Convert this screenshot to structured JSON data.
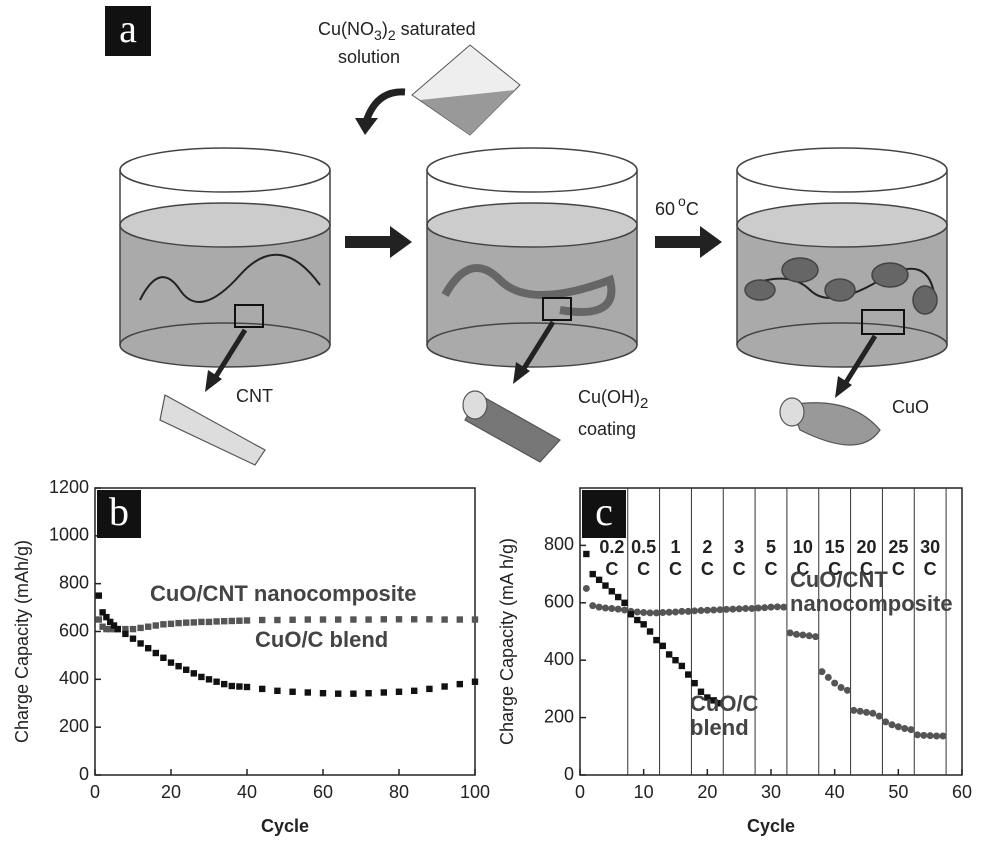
{
  "diagram": {
    "panel": "a",
    "reagent": {
      "formula": [
        "Cu(NO",
        "3",
        ")",
        "2"
      ],
      "line1": "saturated",
      "line2": "solution"
    },
    "temperature": {
      "value": "60",
      "degree": "o",
      "unit": "C"
    },
    "steps": [
      {
        "label": "CNT"
      },
      {
        "label": [
          "Cu(OH)",
          "2"
        ],
        "label2": "coating"
      },
      {
        "label": "CuO"
      }
    ]
  },
  "chart_data": [
    {
      "type": "scatter",
      "panel": "b",
      "xlabel": "Cycle",
      "ylabel": "Charge Capacity (mAh/g)",
      "xlim": [
        0,
        100
      ],
      "xticks": [
        0,
        20,
        40,
        60,
        80,
        100
      ],
      "ylim": [
        0,
        1200
      ],
      "yticks": [
        0,
        200,
        400,
        600,
        800,
        1000,
        1200
      ],
      "x": [
        1,
        2,
        3,
        4,
        5,
        6,
        8,
        10,
        12,
        14,
        16,
        18,
        20,
        22,
        24,
        26,
        28,
        30,
        32,
        34,
        36,
        38,
        40,
        44,
        48,
        52,
        56,
        60,
        64,
        68,
        72,
        76,
        80,
        84,
        88,
        92,
        96,
        100
      ],
      "series": [
        {
          "name": "CuO/CNT nanocomposite",
          "color": "#555555",
          "marker": "square",
          "values": [
            650,
            620,
            610,
            610,
            610,
            610,
            610,
            610,
            615,
            620,
            625,
            630,
            632,
            635,
            637,
            638,
            640,
            640,
            642,
            643,
            644,
            645,
            646,
            648,
            648,
            649,
            650,
            650,
            650,
            650,
            650,
            651,
            651,
            651,
            651,
            650,
            650,
            650
          ]
        },
        {
          "name": "CuO/C blend",
          "color": "#111111",
          "marker": "square",
          "values": [
            750,
            680,
            660,
            640,
            625,
            610,
            590,
            570,
            550,
            530,
            510,
            490,
            470,
            455,
            440,
            425,
            410,
            400,
            390,
            380,
            372,
            370,
            368,
            360,
            352,
            348,
            345,
            342,
            340,
            340,
            342,
            345,
            348,
            352,
            360,
            370,
            380,
            390
          ]
        }
      ]
    },
    {
      "type": "scatter",
      "panel": "c",
      "xlabel": "Cycle",
      "ylabel": "Charge Capacity (mA h/g)",
      "xlim": [
        0,
        60
      ],
      "xticks": [
        0,
        10,
        20,
        30,
        40,
        50,
        60
      ],
      "ylim": [
        0,
        1000
      ],
      "yticks": [
        0,
        200,
        400,
        600,
        800
      ],
      "rates": [
        "0.2",
        "0.5",
        "1",
        "2",
        "3",
        "5",
        "10",
        "15",
        "20",
        "25",
        "30"
      ],
      "rate_unit": "C",
      "rate_boundaries": [
        7.5,
        12.5,
        17.5,
        22.5,
        27.5,
        32.5,
        37.5,
        42.5,
        47.5,
        52.5,
        57.5
      ],
      "series": [
        {
          "name": "CuO/CNT nanocomposite",
          "color": "#555555",
          "marker": "circle",
          "x": [
            1,
            2,
            3,
            4,
            5,
            6,
            7,
            8,
            9,
            10,
            11,
            12,
            13,
            14,
            15,
            16,
            17,
            18,
            19,
            20,
            21,
            22,
            23,
            24,
            25,
            26,
            27,
            28,
            29,
            30,
            31,
            32,
            33,
            34,
            35,
            36,
            37,
            38,
            39,
            40,
            41,
            42,
            43,
            44,
            45,
            46,
            47,
            48,
            49,
            50,
            51,
            52,
            53,
            54,
            55,
            56,
            57
          ],
          "values": [
            650,
            590,
            585,
            582,
            580,
            578,
            575,
            570,
            568,
            566,
            565,
            565,
            566,
            567,
            568,
            570,
            570,
            572,
            573,
            574,
            575,
            576,
            577,
            578,
            579,
            580,
            580,
            582,
            583,
            585,
            586,
            585,
            495,
            490,
            488,
            485,
            482,
            360,
            340,
            320,
            305,
            295,
            225,
            222,
            218,
            215,
            205,
            185,
            175,
            168,
            162,
            158,
            140,
            138,
            137,
            136,
            136
          ]
        },
        {
          "name": "CuO/C blend",
          "color": "#111111",
          "marker": "square",
          "x": [
            1,
            2,
            3,
            4,
            5,
            6,
            7,
            8,
            9,
            10,
            11,
            12,
            13,
            14,
            15,
            16,
            17,
            18,
            19,
            20,
            21,
            22
          ],
          "values": [
            770,
            700,
            680,
            660,
            640,
            620,
            600,
            560,
            540,
            525,
            500,
            470,
            450,
            420,
            400,
            380,
            350,
            320,
            290,
            270,
            260,
            250
          ]
        }
      ]
    }
  ]
}
